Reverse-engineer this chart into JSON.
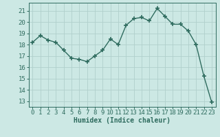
{
  "x": [
    0,
    1,
    2,
    3,
    4,
    5,
    6,
    7,
    8,
    9,
    10,
    11,
    12,
    13,
    14,
    15,
    16,
    17,
    18,
    19,
    20,
    21,
    22,
    23
  ],
  "y": [
    18.2,
    18.8,
    18.4,
    18.2,
    17.5,
    16.8,
    16.7,
    16.5,
    17.0,
    17.5,
    18.5,
    18.0,
    19.7,
    20.3,
    20.4,
    20.1,
    21.2,
    20.5,
    19.8,
    19.8,
    19.2,
    18.0,
    15.2,
    12.9
  ],
  "xlabel": "Humidex (Indice chaleur)",
  "ylim": [
    12.5,
    21.7
  ],
  "xlim": [
    -0.5,
    23.5
  ],
  "yticks": [
    13,
    14,
    15,
    16,
    17,
    18,
    19,
    20,
    21
  ],
  "xticks": [
    0,
    1,
    2,
    3,
    4,
    5,
    6,
    7,
    8,
    9,
    10,
    11,
    12,
    13,
    14,
    15,
    16,
    17,
    18,
    19,
    20,
    21,
    22,
    23
  ],
  "line_color": "#2e6b5e",
  "marker": "+",
  "marker_size": 4,
  "marker_lw": 1.2,
  "line_width": 1.0,
  "bg_color": "#cce8e4",
  "grid_color": "#b0cfcc",
  "tick_label_color": "#2e6b5e",
  "xlabel_color": "#2e6b5e",
  "xlabel_fontsize": 7,
  "tick_fontsize": 6.5,
  "spine_color": "#2e6b5e"
}
